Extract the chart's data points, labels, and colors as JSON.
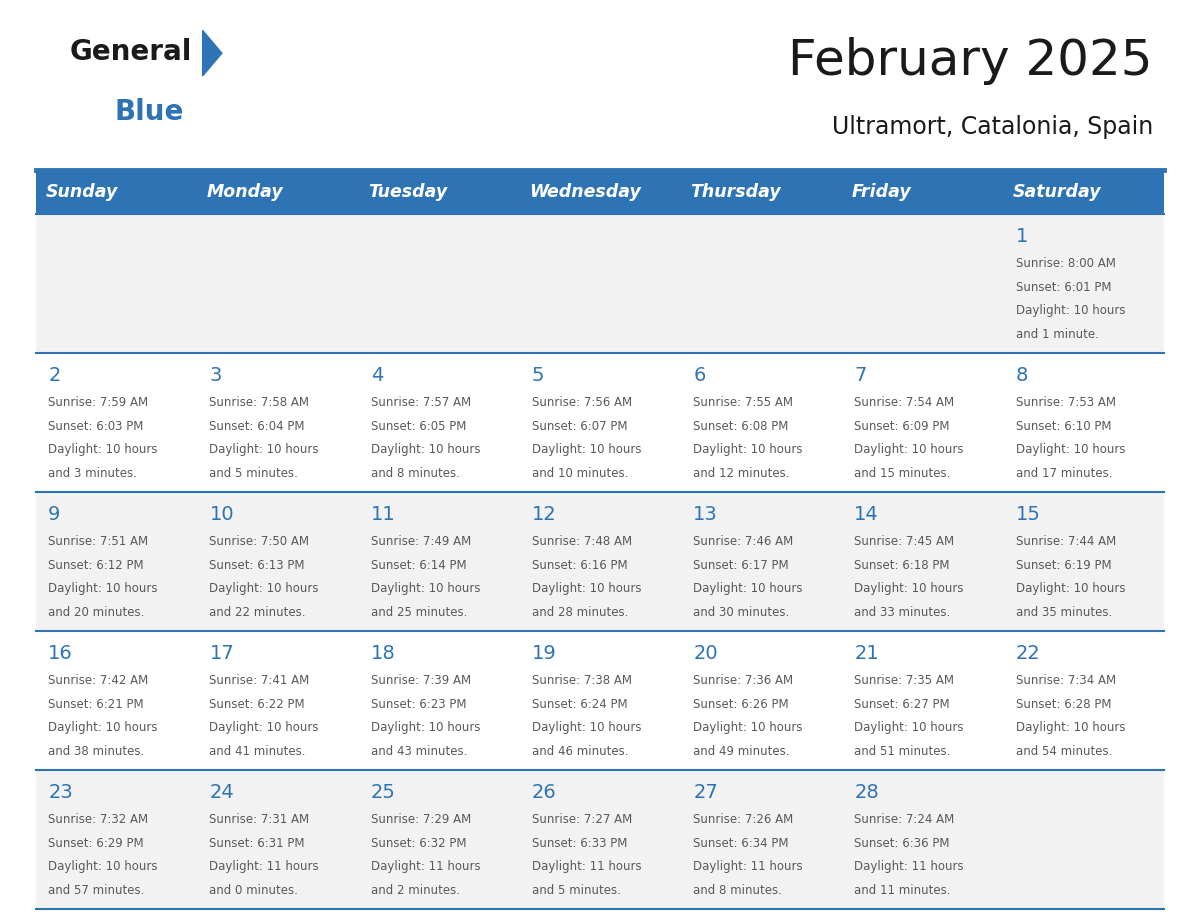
{
  "title": "February 2025",
  "subtitle": "Ultramort, Catalonia, Spain",
  "days_of_week": [
    "Sunday",
    "Monday",
    "Tuesday",
    "Wednesday",
    "Thursday",
    "Friday",
    "Saturday"
  ],
  "header_bg": "#2E74B5",
  "header_text": "#FFFFFF",
  "cell_bg_white": "#FFFFFF",
  "cell_bg_gray": "#F2F2F2",
  "day_number_color": "#2E74B5",
  "text_color": "#595959",
  "border_color": "#2E74B5",
  "title_color": "#1A1A1A",
  "logo_text_color": "#1A1A1A",
  "logo_blue_color": "#2E74B5",
  "calendar_data": [
    [
      null,
      null,
      null,
      null,
      null,
      null,
      {
        "day": "1",
        "sunrise": "Sunrise: 8:00 AM",
        "sunset": "Sunset: 6:01 PM",
        "daylight": "Daylight: 10 hours",
        "daylight2": "and 1 minute."
      }
    ],
    [
      {
        "day": "2",
        "sunrise": "Sunrise: 7:59 AM",
        "sunset": "Sunset: 6:03 PM",
        "daylight": "Daylight: 10 hours",
        "daylight2": "and 3 minutes."
      },
      {
        "day": "3",
        "sunrise": "Sunrise: 7:58 AM",
        "sunset": "Sunset: 6:04 PM",
        "daylight": "Daylight: 10 hours",
        "daylight2": "and 5 minutes."
      },
      {
        "day": "4",
        "sunrise": "Sunrise: 7:57 AM",
        "sunset": "Sunset: 6:05 PM",
        "daylight": "Daylight: 10 hours",
        "daylight2": "and 8 minutes."
      },
      {
        "day": "5",
        "sunrise": "Sunrise: 7:56 AM",
        "sunset": "Sunset: 6:07 PM",
        "daylight": "Daylight: 10 hours",
        "daylight2": "and 10 minutes."
      },
      {
        "day": "6",
        "sunrise": "Sunrise: 7:55 AM",
        "sunset": "Sunset: 6:08 PM",
        "daylight": "Daylight: 10 hours",
        "daylight2": "and 12 minutes."
      },
      {
        "day": "7",
        "sunrise": "Sunrise: 7:54 AM",
        "sunset": "Sunset: 6:09 PM",
        "daylight": "Daylight: 10 hours",
        "daylight2": "and 15 minutes."
      },
      {
        "day": "8",
        "sunrise": "Sunrise: 7:53 AM",
        "sunset": "Sunset: 6:10 PM",
        "daylight": "Daylight: 10 hours",
        "daylight2": "and 17 minutes."
      }
    ],
    [
      {
        "day": "9",
        "sunrise": "Sunrise: 7:51 AM",
        "sunset": "Sunset: 6:12 PM",
        "daylight": "Daylight: 10 hours",
        "daylight2": "and 20 minutes."
      },
      {
        "day": "10",
        "sunrise": "Sunrise: 7:50 AM",
        "sunset": "Sunset: 6:13 PM",
        "daylight": "Daylight: 10 hours",
        "daylight2": "and 22 minutes."
      },
      {
        "day": "11",
        "sunrise": "Sunrise: 7:49 AM",
        "sunset": "Sunset: 6:14 PM",
        "daylight": "Daylight: 10 hours",
        "daylight2": "and 25 minutes."
      },
      {
        "day": "12",
        "sunrise": "Sunrise: 7:48 AM",
        "sunset": "Sunset: 6:16 PM",
        "daylight": "Daylight: 10 hours",
        "daylight2": "and 28 minutes."
      },
      {
        "day": "13",
        "sunrise": "Sunrise: 7:46 AM",
        "sunset": "Sunset: 6:17 PM",
        "daylight": "Daylight: 10 hours",
        "daylight2": "and 30 minutes."
      },
      {
        "day": "14",
        "sunrise": "Sunrise: 7:45 AM",
        "sunset": "Sunset: 6:18 PM",
        "daylight": "Daylight: 10 hours",
        "daylight2": "and 33 minutes."
      },
      {
        "day": "15",
        "sunrise": "Sunrise: 7:44 AM",
        "sunset": "Sunset: 6:19 PM",
        "daylight": "Daylight: 10 hours",
        "daylight2": "and 35 minutes."
      }
    ],
    [
      {
        "day": "16",
        "sunrise": "Sunrise: 7:42 AM",
        "sunset": "Sunset: 6:21 PM",
        "daylight": "Daylight: 10 hours",
        "daylight2": "and 38 minutes."
      },
      {
        "day": "17",
        "sunrise": "Sunrise: 7:41 AM",
        "sunset": "Sunset: 6:22 PM",
        "daylight": "Daylight: 10 hours",
        "daylight2": "and 41 minutes."
      },
      {
        "day": "18",
        "sunrise": "Sunrise: 7:39 AM",
        "sunset": "Sunset: 6:23 PM",
        "daylight": "Daylight: 10 hours",
        "daylight2": "and 43 minutes."
      },
      {
        "day": "19",
        "sunrise": "Sunrise: 7:38 AM",
        "sunset": "Sunset: 6:24 PM",
        "daylight": "Daylight: 10 hours",
        "daylight2": "and 46 minutes."
      },
      {
        "day": "20",
        "sunrise": "Sunrise: 7:36 AM",
        "sunset": "Sunset: 6:26 PM",
        "daylight": "Daylight: 10 hours",
        "daylight2": "and 49 minutes."
      },
      {
        "day": "21",
        "sunrise": "Sunrise: 7:35 AM",
        "sunset": "Sunset: 6:27 PM",
        "daylight": "Daylight: 10 hours",
        "daylight2": "and 51 minutes."
      },
      {
        "day": "22",
        "sunrise": "Sunrise: 7:34 AM",
        "sunset": "Sunset: 6:28 PM",
        "daylight": "Daylight: 10 hours",
        "daylight2": "and 54 minutes."
      }
    ],
    [
      {
        "day": "23",
        "sunrise": "Sunrise: 7:32 AM",
        "sunset": "Sunset: 6:29 PM",
        "daylight": "Daylight: 10 hours",
        "daylight2": "and 57 minutes."
      },
      {
        "day": "24",
        "sunrise": "Sunrise: 7:31 AM",
        "sunset": "Sunset: 6:31 PM",
        "daylight": "Daylight: 11 hours",
        "daylight2": "and 0 minutes."
      },
      {
        "day": "25",
        "sunrise": "Sunrise: 7:29 AM",
        "sunset": "Sunset: 6:32 PM",
        "daylight": "Daylight: 11 hours",
        "daylight2": "and 2 minutes."
      },
      {
        "day": "26",
        "sunrise": "Sunrise: 7:27 AM",
        "sunset": "Sunset: 6:33 PM",
        "daylight": "Daylight: 11 hours",
        "daylight2": "and 5 minutes."
      },
      {
        "day": "27",
        "sunrise": "Sunrise: 7:26 AM",
        "sunset": "Sunset: 6:34 PM",
        "daylight": "Daylight: 11 hours",
        "daylight2": "and 8 minutes."
      },
      {
        "day": "28",
        "sunrise": "Sunrise: 7:24 AM",
        "sunset": "Sunset: 6:36 PM",
        "daylight": "Daylight: 11 hours",
        "daylight2": "and 11 minutes."
      },
      null
    ]
  ],
  "figsize": [
    11.88,
    9.18
  ],
  "dpi": 100
}
